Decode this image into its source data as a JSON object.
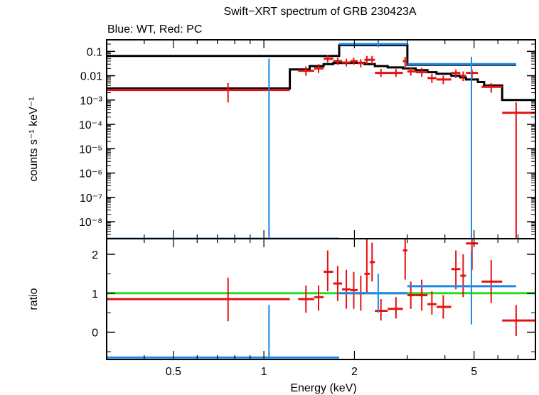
{
  "colors": {
    "wt": "#1f88e5",
    "pc": "#e61111",
    "model": "#000000",
    "unity": "#22dd22",
    "axis": "#000000"
  },
  "chart_data": [
    {
      "type": "scatter",
      "title": "Swift−XRT spectrum of GRB 230423A",
      "subtitle": "Blue: WT, Red: PC",
      "xlabel": "",
      "ylabel": "counts s⁻¹ keV⁻¹",
      "xscale": "log",
      "yscale": "log",
      "xlim": [
        0.3,
        8
      ],
      "ylim": [
        2e-09,
        0.3
      ],
      "yticks": [
        {
          "v": 0.1,
          "t": "0.1"
        },
        {
          "v": 0.01,
          "t": "0.01"
        },
        {
          "v": 0.001,
          "t": "10⁻³"
        },
        {
          "v": 0.0001,
          "t": "10⁻⁴"
        },
        {
          "v": 1e-05,
          "t": "10⁻⁵"
        },
        {
          "v": 1e-06,
          "t": "10⁻⁶"
        },
        {
          "v": 1e-07,
          "t": "10⁻⁷"
        },
        {
          "v": 1e-08,
          "t": "10⁻⁸"
        }
      ],
      "series": [
        {
          "name": "PC",
          "color": "#e61111",
          "points": [
            {
              "x": 0.76,
              "xlo": 0.3,
              "xhi": 1.22,
              "y": 0.0026,
              "ylo": 0.0008,
              "yhi": 0.005
            },
            {
              "x": 1.38,
              "xlo": 1.3,
              "xhi": 1.47,
              "y": 0.016,
              "ylo": 0.01,
              "yhi": 0.024
            },
            {
              "x": 1.52,
              "xlo": 1.47,
              "xhi": 1.58,
              "y": 0.02,
              "ylo": 0.013,
              "yhi": 0.03
            },
            {
              "x": 1.63,
              "xlo": 1.58,
              "xhi": 1.7,
              "y": 0.05,
              "ylo": 0.035,
              "yhi": 0.07
            },
            {
              "x": 1.76,
              "xlo": 1.7,
              "xhi": 1.82,
              "y": 0.04,
              "ylo": 0.028,
              "yhi": 0.055
            },
            {
              "x": 1.88,
              "xlo": 1.82,
              "xhi": 1.94,
              "y": 0.035,
              "ylo": 0.024,
              "yhi": 0.05
            },
            {
              "x": 1.99,
              "xlo": 1.94,
              "xhi": 2.05,
              "y": 0.04,
              "ylo": 0.028,
              "yhi": 0.055
            },
            {
              "x": 2.1,
              "xlo": 2.05,
              "xhi": 2.16,
              "y": 0.033,
              "ylo": 0.022,
              "yhi": 0.048
            },
            {
              "x": 2.2,
              "xlo": 2.16,
              "xhi": 2.25,
              "y": 0.045,
              "ylo": 0.03,
              "yhi": 0.065
            },
            {
              "x": 2.29,
              "xlo": 2.25,
              "xhi": 2.34,
              "y": 0.045,
              "ylo": 0.03,
              "yhi": 0.065
            },
            {
              "x": 2.45,
              "xlo": 2.34,
              "xhi": 2.58,
              "y": 0.013,
              "ylo": 0.009,
              "yhi": 0.019
            },
            {
              "x": 2.75,
              "xlo": 2.58,
              "xhi": 2.9,
              "y": 0.013,
              "ylo": 0.009,
              "yhi": 0.019
            },
            {
              "x": 2.95,
              "xlo": 2.9,
              "xhi": 3.0,
              "y": 0.04,
              "ylo": 0.02,
              "yhi": 0.06
            },
            {
              "x": 3.08,
              "xlo": 3.0,
              "xhi": 3.2,
              "y": 0.015,
              "ylo": 0.01,
              "yhi": 0.022
            },
            {
              "x": 3.35,
              "xlo": 3.2,
              "xhi": 3.5,
              "y": 0.014,
              "ylo": 0.009,
              "yhi": 0.021
            },
            {
              "x": 3.62,
              "xlo": 3.5,
              "xhi": 3.75,
              "y": 0.008,
              "ylo": 0.005,
              "yhi": 0.012
            },
            {
              "x": 3.95,
              "xlo": 3.75,
              "xhi": 4.2,
              "y": 0.007,
              "ylo": 0.0045,
              "yhi": 0.01
            },
            {
              "x": 4.35,
              "xlo": 4.2,
              "xhi": 4.5,
              "y": 0.013,
              "ylo": 0.008,
              "yhi": 0.018
            },
            {
              "x": 4.6,
              "xlo": 4.5,
              "xhi": 4.7,
              "y": 0.01,
              "ylo": 0.006,
              "yhi": 0.015
            },
            {
              "x": 4.92,
              "xlo": 4.7,
              "xhi": 5.15,
              "y": 0.013,
              "ylo": 0.008,
              "yhi": 0.018
            },
            {
              "x": 5.7,
              "xlo": 5.3,
              "xhi": 6.2,
              "y": 0.0035,
              "ylo": 0.002,
              "yhi": 0.005
            },
            {
              "x": 6.9,
              "xlo": 6.2,
              "xhi": 8.0,
              "y": 0.0003,
              "ylo": 2e-09,
              "yhi": 0.0008
            }
          ]
        },
        {
          "name": "WT",
          "color": "#1f88e5",
          "points": [
            {
              "x": 1.04,
              "xlo": 0.3,
              "xhi": 1.78,
              "y": 2e-09,
              "ylo": 2e-09,
              "yhi": 0.05
            },
            {
              "x": 2.4,
              "xlo": 1.78,
              "xhi": 3.0,
              "y": 0.2,
              "ylo": 0.15,
              "yhi": 0.3
            },
            {
              "x": 4.9,
              "xlo": 3.0,
              "xhi": 6.9,
              "y": 0.03,
              "ylo": 2e-09,
              "yhi": 0.06
            }
          ]
        }
      ],
      "models": [
        {
          "name": "WT model",
          "color": "#000000",
          "steps": [
            {
              "x0": 0.3,
              "x1": 1.78,
              "y": 0.065
            },
            {
              "x0": 1.78,
              "x1": 3.0,
              "y": 0.18
            },
            {
              "x0": 3.0,
              "x1": 6.9,
              "y": 0.028
            }
          ]
        },
        {
          "name": "PC model",
          "color": "#000000",
          "steps": [
            {
              "x0": 0.3,
              "x1": 1.22,
              "y": 0.003
            },
            {
              "x0": 1.22,
              "x1": 1.42,
              "y": 0.018
            },
            {
              "x0": 1.42,
              "x1": 1.58,
              "y": 0.025
            },
            {
              "x0": 1.58,
              "x1": 1.7,
              "y": 0.03
            },
            {
              "x0": 1.7,
              "x1": 1.94,
              "y": 0.033
            },
            {
              "x0": 1.94,
              "x1": 2.16,
              "y": 0.034
            },
            {
              "x0": 2.16,
              "x1": 2.34,
              "y": 0.03
            },
            {
              "x0": 2.34,
              "x1": 2.58,
              "y": 0.025
            },
            {
              "x0": 2.58,
              "x1": 2.9,
              "y": 0.022
            },
            {
              "x0": 2.9,
              "x1": 3.2,
              "y": 0.02
            },
            {
              "x0": 3.2,
              "x1": 3.5,
              "y": 0.017
            },
            {
              "x0": 3.5,
              "x1": 3.75,
              "y": 0.014
            },
            {
              "x0": 3.75,
              "x1": 4.2,
              "y": 0.012
            },
            {
              "x0": 4.2,
              "x1": 4.5,
              "y": 0.01
            },
            {
              "x0": 4.5,
              "x1": 4.7,
              "y": 0.0085
            },
            {
              "x0": 4.7,
              "x1": 5.15,
              "y": 0.007
            },
            {
              "x0": 5.15,
              "x1": 5.4,
              "y": 0.0055
            },
            {
              "x0": 5.4,
              "x1": 6.2,
              "y": 0.004
            },
            {
              "x0": 6.2,
              "x1": 8.0,
              "y": 0.001
            }
          ]
        }
      ]
    },
    {
      "type": "scatter",
      "xlabel": "Energy (keV)",
      "ylabel": "ratio",
      "xscale": "log",
      "yscale": "linear",
      "xlim": [
        0.3,
        8
      ],
      "ylim": [
        -0.7,
        2.4
      ],
      "xticks": [
        {
          "v": 0.5,
          "t": "0.5"
        },
        {
          "v": 1,
          "t": "1"
        },
        {
          "v": 2,
          "t": "2"
        },
        {
          "v": 5,
          "t": "5"
        }
      ],
      "yticks": [
        {
          "v": 0,
          "t": "0"
        },
        {
          "v": 1,
          "t": "1"
        },
        {
          "v": 2,
          "t": "2"
        }
      ],
      "reference_line": 1,
      "series": [
        {
          "name": "PC",
          "color": "#e61111",
          "points": [
            {
              "x": 0.76,
              "xlo": 0.3,
              "xhi": 1.22,
              "y": 0.85,
              "ylo": 0.28,
              "yhi": 1.4
            },
            {
              "x": 1.38,
              "xlo": 1.3,
              "xhi": 1.47,
              "y": 0.85,
              "ylo": 0.5,
              "yhi": 1.2
            },
            {
              "x": 1.52,
              "xlo": 1.47,
              "xhi": 1.58,
              "y": 0.9,
              "ylo": 0.55,
              "yhi": 1.2
            },
            {
              "x": 1.63,
              "xlo": 1.58,
              "xhi": 1.7,
              "y": 1.55,
              "ylo": 1.05,
              "yhi": 2.1
            },
            {
              "x": 1.76,
              "xlo": 1.7,
              "xhi": 1.82,
              "y": 1.25,
              "ylo": 0.8,
              "yhi": 1.7
            },
            {
              "x": 1.88,
              "xlo": 1.82,
              "xhi": 1.94,
              "y": 1.1,
              "ylo": 0.6,
              "yhi": 1.6
            },
            {
              "x": 1.99,
              "xlo": 1.94,
              "xhi": 2.05,
              "y": 1.08,
              "ylo": 0.6,
              "yhi": 1.55
            },
            {
              "x": 2.1,
              "xlo": 2.05,
              "xhi": 2.16,
              "y": 1.0,
              "ylo": 0.55,
              "yhi": 1.45
            },
            {
              "x": 2.2,
              "xlo": 2.16,
              "xhi": 2.25,
              "y": 1.5,
              "ylo": 1.0,
              "yhi": 2.4
            },
            {
              "x": 2.29,
              "xlo": 2.25,
              "xhi": 2.34,
              "y": 1.8,
              "ylo": 1.3,
              "yhi": 2.3
            },
            {
              "x": 2.45,
              "xlo": 2.34,
              "xhi": 2.58,
              "y": 0.55,
              "ylo": 0.3,
              "yhi": 0.85
            },
            {
              "x": 2.75,
              "xlo": 2.58,
              "xhi": 2.9,
              "y": 0.6,
              "ylo": 0.35,
              "yhi": 0.9
            },
            {
              "x": 2.95,
              "xlo": 2.9,
              "xhi": 3.0,
              "y": 2.1,
              "ylo": 1.35,
              "yhi": 2.4
            },
            {
              "x": 3.08,
              "xlo": 3.0,
              "xhi": 3.2,
              "y": 0.95,
              "ylo": 0.6,
              "yhi": 1.3
            },
            {
              "x": 3.35,
              "xlo": 3.2,
              "xhi": 3.5,
              "y": 0.95,
              "ylo": 0.55,
              "yhi": 1.35
            },
            {
              "x": 3.62,
              "xlo": 3.5,
              "xhi": 3.75,
              "y": 0.72,
              "ylo": 0.45,
              "yhi": 1.05
            },
            {
              "x": 3.95,
              "xlo": 3.75,
              "xhi": 4.2,
              "y": 0.65,
              "ylo": 0.35,
              "yhi": 0.95
            },
            {
              "x": 4.35,
              "xlo": 4.2,
              "xhi": 4.5,
              "y": 1.62,
              "ylo": 1.1,
              "yhi": 2.1
            },
            {
              "x": 4.6,
              "xlo": 4.5,
              "xhi": 4.7,
              "y": 1.45,
              "ylo": 0.9,
              "yhi": 2.0
            },
            {
              "x": 4.92,
              "xlo": 4.7,
              "xhi": 5.15,
              "y": 2.28,
              "ylo": 1.6,
              "yhi": 2.4
            },
            {
              "x": 5.7,
              "xlo": 5.3,
              "xhi": 6.2,
              "y": 1.3,
              "ylo": 0.75,
              "yhi": 1.85
            },
            {
              "x": 6.9,
              "xlo": 6.2,
              "xhi": 8.0,
              "y": 0.3,
              "ylo": -0.1,
              "yhi": 0.7
            }
          ]
        },
        {
          "name": "WT",
          "color": "#1f88e5",
          "points": [
            {
              "x": 1.04,
              "xlo": 0.3,
              "xhi": 1.78,
              "y": -0.65,
              "ylo": -0.7,
              "yhi": 0.7
            },
            {
              "x": 2.4,
              "xlo": 1.78,
              "xhi": 3.0,
              "y": 1.0,
              "ylo": 0.5,
              "yhi": 1.5
            },
            {
              "x": 4.9,
              "xlo": 3.0,
              "xhi": 6.9,
              "y": 1.18,
              "ylo": 0.2,
              "yhi": 2.1
            }
          ]
        }
      ]
    }
  ]
}
